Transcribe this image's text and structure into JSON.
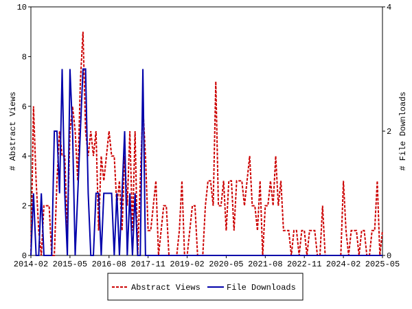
{
  "chart_data": {
    "type": "line",
    "ylabel": "# Abstract Views",
    "y2label": "# File Downloads",
    "x": [
      "2014-02",
      "2014-03",
      "2014-04",
      "2014-05",
      "2014-06",
      "2014-07",
      "2014-08",
      "2014-09",
      "2014-10",
      "2014-11",
      "2014-12",
      "2015-01",
      "2015-02",
      "2015-03",
      "2015-04",
      "2015-05",
      "2015-06",
      "2015-07",
      "2015-08",
      "2015-09",
      "2015-10",
      "2015-11",
      "2015-12",
      "2016-01",
      "2016-02",
      "2016-03",
      "2016-04",
      "2016-05",
      "2016-06",
      "2016-07",
      "2016-08",
      "2016-09",
      "2016-10",
      "2016-11",
      "2016-12",
      "2017-01",
      "2017-02",
      "2017-03",
      "2017-04",
      "2017-05",
      "2017-06",
      "2017-07",
      "2017-08",
      "2017-09",
      "2017-10",
      "2017-11",
      "2017-12",
      "2018-01",
      "2018-02",
      "2018-03",
      "2018-04",
      "2018-05",
      "2018-06",
      "2018-07",
      "2018-08",
      "2018-09",
      "2018-10",
      "2018-11",
      "2018-12",
      "2019-01",
      "2019-02",
      "2019-03",
      "2019-04",
      "2019-05",
      "2019-06",
      "2019-07",
      "2019-08",
      "2019-09",
      "2019-10",
      "2019-11",
      "2019-12",
      "2020-01",
      "2020-02",
      "2020-03",
      "2020-04",
      "2020-05",
      "2020-06",
      "2020-07",
      "2020-08",
      "2020-09",
      "2020-10",
      "2020-11",
      "2020-12",
      "2021-01",
      "2021-02",
      "2021-03",
      "2021-04",
      "2021-05",
      "2021-06",
      "2021-07",
      "2021-08",
      "2021-09",
      "2021-10",
      "2021-11",
      "2021-12",
      "2022-01",
      "2022-02",
      "2022-03",
      "2022-04",
      "2022-05",
      "2022-06",
      "2022-07",
      "2022-08",
      "2022-09",
      "2022-10",
      "2022-11",
      "2022-12",
      "2023-01",
      "2023-02",
      "2023-03",
      "2023-04",
      "2023-05",
      "2023-06",
      "2023-07",
      "2023-08",
      "2023-09",
      "2023-10",
      "2023-11",
      "2023-12",
      "2024-01",
      "2024-02",
      "2024-03",
      "2024-04",
      "2024-05",
      "2024-06",
      "2024-07",
      "2024-08",
      "2024-09",
      "2024-10",
      "2024-11",
      "2024-12",
      "2025-01",
      "2025-02",
      "2025-03",
      "2025-04",
      "2025-05"
    ],
    "xticks": [
      "2014-02",
      "2015-05",
      "2016-08",
      "2017-11",
      "2019-02",
      "2020-05",
      "2021-08",
      "2022-11",
      "2024-02",
      "2025-05"
    ],
    "ylim": [
      0,
      10
    ],
    "yticks": [
      0,
      2,
      4,
      6,
      8,
      10
    ],
    "y2lim": [
      0,
      4
    ],
    "y2ticks": [
      0,
      2,
      4
    ],
    "legend": "bottom",
    "series": [
      {
        "name": "Abstract Views",
        "color": "#cc0000",
        "dash": true,
        "values": [
          0,
          6,
          3,
          1,
          0,
          2,
          2,
          2,
          0,
          0,
          3,
          5,
          4,
          4,
          1,
          5,
          6,
          5,
          3,
          7,
          9,
          5,
          4,
          5,
          4,
          5,
          1,
          4,
          3,
          4,
          5,
          4,
          4,
          2,
          3,
          1,
          4,
          2,
          5,
          1,
          5,
          0,
          3,
          6,
          4,
          1,
          1,
          2,
          3,
          0,
          1,
          2,
          2,
          0,
          0,
          0,
          0,
          1,
          3,
          0,
          0,
          1,
          2,
          2,
          0,
          0,
          0,
          2,
          3,
          3,
          2,
          7,
          2,
          2,
          3,
          1,
          3,
          3,
          1,
          3,
          3,
          3,
          2,
          3,
          4,
          2,
          2,
          1,
          3,
          0,
          2,
          2,
          3,
          2,
          4,
          2,
          3,
          1,
          1,
          1,
          0,
          1,
          1,
          0,
          1,
          1,
          0,
          1,
          1,
          1,
          0,
          0,
          2,
          0,
          0,
          0,
          0,
          0,
          0,
          0,
          3,
          1,
          0,
          1,
          1,
          1,
          0,
          1,
          1,
          0,
          0,
          1,
          1,
          3,
          0,
          1
        ]
      },
      {
        "name": "File Downloads",
        "color": "#0000aa",
        "axis": "y2",
        "dash": false,
        "values": [
          0,
          1,
          0,
          0,
          1,
          0,
          0,
          0,
          0,
          2,
          2,
          1,
          3,
          1,
          0,
          3,
          2,
          0,
          1,
          2,
          3,
          3,
          1,
          0,
          0,
          1,
          1,
          0,
          1,
          1,
          1,
          1,
          0,
          1,
          0,
          1,
          2,
          0,
          1,
          0,
          1,
          0,
          0,
          3,
          0,
          0,
          0,
          0,
          0,
          0,
          0,
          0,
          0,
          0,
          0,
          0,
          0,
          0,
          0,
          0,
          0,
          0,
          0,
          0,
          0,
          0,
          0,
          0,
          0,
          0,
          0,
          0,
          0,
          0,
          0,
          0,
          0,
          0,
          0,
          0,
          0,
          0,
          0,
          0,
          0,
          0,
          0,
          0,
          0,
          0,
          0,
          0,
          0,
          0,
          0,
          0,
          0,
          0,
          0,
          0,
          0,
          0,
          0,
          0,
          0,
          0,
          0,
          0,
          0,
          0,
          0,
          0,
          0,
          0,
          0,
          0,
          0,
          0,
          0,
          0,
          0,
          0,
          0,
          0,
          0,
          0,
          0,
          0,
          0,
          0,
          0,
          0,
          0,
          0,
          0,
          0
        ]
      }
    ]
  }
}
